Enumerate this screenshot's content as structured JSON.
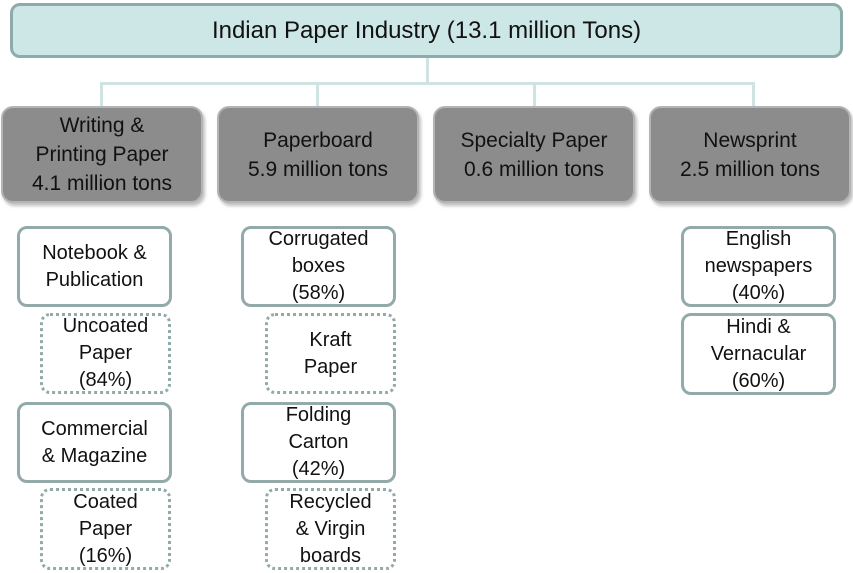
{
  "title": "Indian Paper Industry (13.1 million Tons)",
  "categories": [
    {
      "name": "Writing &\nPrinting Paper",
      "amount": "4.1 million tons"
    },
    {
      "name": "Paperboard",
      "amount": "5.9 million tons"
    },
    {
      "name": "Specialty Paper",
      "amount": "0.6 million tons"
    },
    {
      "name": "Newsprint",
      "amount": "2.5 million tons"
    }
  ],
  "writing_printing": {
    "notebook": "Notebook &\nPublication",
    "uncoated": "Uncoated\nPaper\n(84%)",
    "commercial": "Commercial\n& Magazine",
    "coated": "Coated\nPaper\n(16%)"
  },
  "paperboard": {
    "corrugated": "Corrugated\nboxes\n(58%)",
    "kraft": "Kraft\nPaper",
    "folding": "Folding\nCarton\n(42%)",
    "recycled": "Recycled\n& Virgin\nboards"
  },
  "newsprint": {
    "english": "English\nnewspapers\n(40%)",
    "hindi": "Hindi &\nVernacular\n(60%)"
  }
}
